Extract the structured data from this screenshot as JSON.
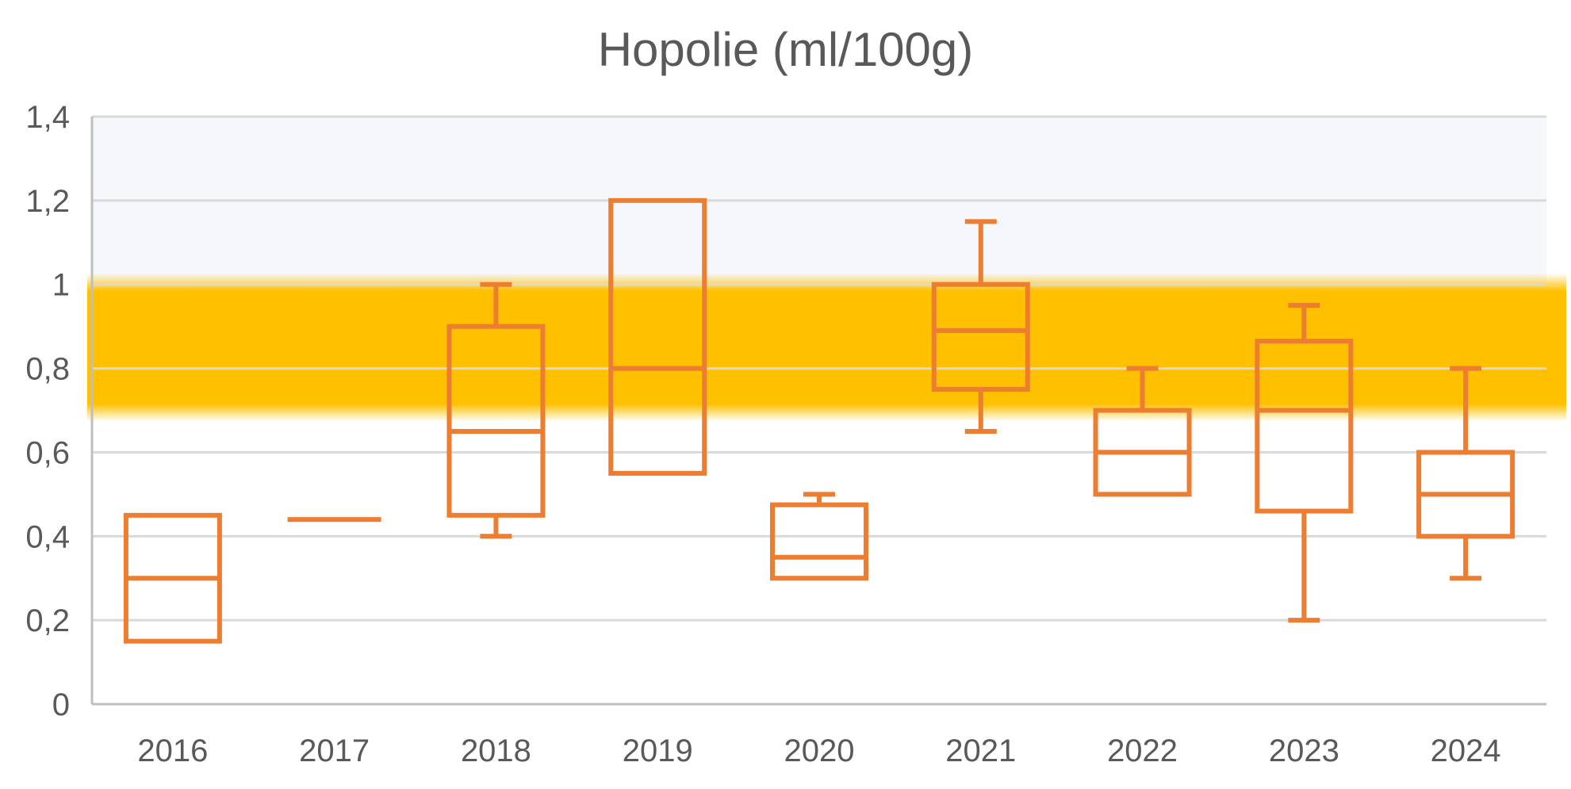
{
  "chart_data": {
    "type": "box",
    "title": "Hopolie (ml/100g)",
    "xlabel": "",
    "ylabel": "",
    "ylim": [
      0,
      1.4
    ],
    "yticks": [
      {
        "value": 0,
        "label": "0"
      },
      {
        "value": 0.2,
        "label": "0,2"
      },
      {
        "value": 0.4,
        "label": "0,4"
      },
      {
        "value": 0.6,
        "label": "0,6"
      },
      {
        "value": 0.8,
        "label": "0,8"
      },
      {
        "value": 1.0,
        "label": "1"
      },
      {
        "value": 1.2,
        "label": "1,2"
      },
      {
        "value": 1.4,
        "label": "1,4"
      }
    ],
    "grid": true,
    "target_band": {
      "from": 0.7,
      "to": 1.0,
      "color": "#FFC000"
    },
    "upper_zone": {
      "from": 1.0,
      "to": 1.4,
      "color": "#F5F7FA"
    },
    "box_color": "#ED7D31",
    "grid_color": "#D9D9D9",
    "categories": [
      "2016",
      "2017",
      "2018",
      "2019",
      "2020",
      "2021",
      "2022",
      "2023",
      "2024"
    ],
    "boxes": [
      {
        "category": "2016",
        "min": 0.15,
        "q1": 0.15,
        "median": 0.3,
        "q3": 0.45,
        "max": 0.45
      },
      {
        "category": "2017",
        "min": 0.44,
        "q1": 0.44,
        "median": 0.44,
        "q3": 0.44,
        "max": 0.44
      },
      {
        "category": "2018",
        "min": 0.4,
        "q1": 0.45,
        "median": 0.65,
        "q3": 0.9,
        "max": 1.0
      },
      {
        "category": "2019",
        "min": 0.55,
        "q1": 0.55,
        "median": 0.8,
        "q3": 1.2,
        "max": 1.2
      },
      {
        "category": "2020",
        "min": 0.3,
        "q1": 0.3,
        "median": 0.35,
        "q3": 0.475,
        "max": 0.5
      },
      {
        "category": "2021",
        "min": 0.65,
        "q1": 0.75,
        "median": 0.89,
        "q3": 1.0,
        "max": 1.15
      },
      {
        "category": "2022",
        "min": 0.5,
        "q1": 0.5,
        "median": 0.6,
        "q3": 0.7,
        "max": 0.8
      },
      {
        "category": "2023",
        "min": 0.2,
        "q1": 0.46,
        "median": 0.7,
        "q3": 0.865,
        "max": 0.95
      },
      {
        "category": "2024",
        "min": 0.3,
        "q1": 0.4,
        "median": 0.5,
        "q3": 0.6,
        "max": 0.8
      }
    ]
  }
}
